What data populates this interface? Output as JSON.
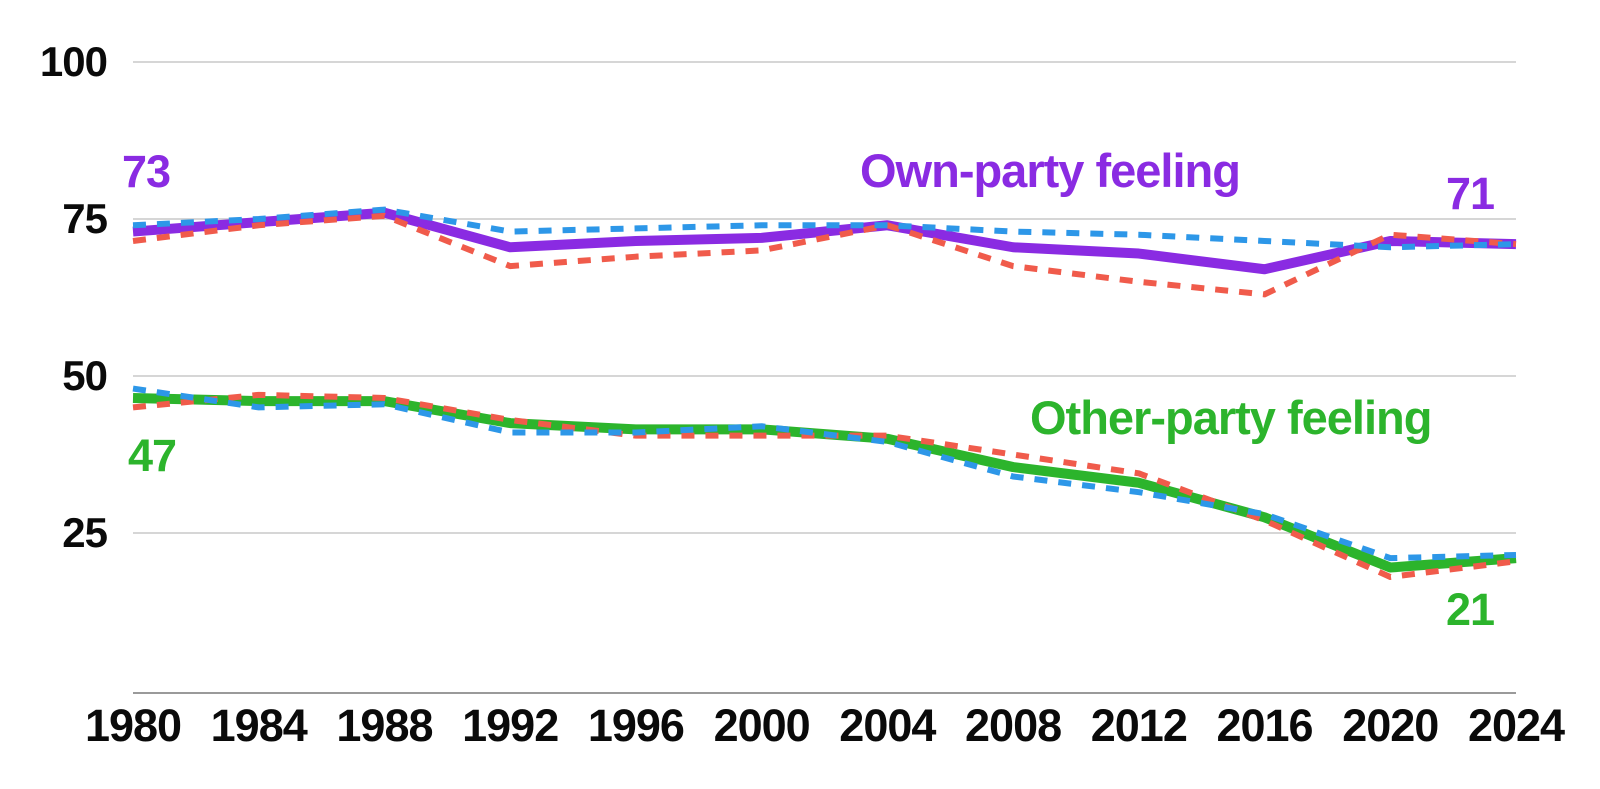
{
  "chart_data": {
    "type": "line",
    "title": "",
    "x": [
      1980,
      1984,
      1988,
      1992,
      1996,
      2000,
      2004,
      2008,
      2012,
      2016,
      2020,
      2024
    ],
    "x_tick_labels": [
      "1980",
      "1984",
      "1988",
      "1992",
      "1996",
      "2000",
      "2004",
      "2008",
      "2012",
      "2016",
      "2020",
      "2024"
    ],
    "y_axis": {
      "tick_values": [
        100,
        75,
        50,
        25
      ],
      "tick_labels": [
        "100",
        "75",
        "50",
        "25"
      ],
      "shown_range": [
        25,
        100
      ],
      "grid": true
    },
    "legend_position": "none",
    "colors": {
      "purple": "#8A2BE2",
      "green": "#2CB42C",
      "blue_dashed": "#2D97E8",
      "red_dashed": "#F05B4B",
      "gridline": "#c9c9c9",
      "axis_line": "#9a9a9a",
      "tick_text": "#0a0a0a"
    },
    "groups": [
      {
        "id": "own-party",
        "label": "Own-party feeling",
        "label_color": "#8A2BE2",
        "start_value_label": "73",
        "end_value_label": "71",
        "series": [
          {
            "id": "own-solid-average",
            "style": "solid",
            "color": "#8A2BE2",
            "values": [
              73,
              74.5,
              76,
              70.5,
              71.5,
              72,
              74,
              70.5,
              69.5,
              67,
              71.5,
              71
            ]
          },
          {
            "id": "own-dashed-red",
            "style": "dashed",
            "color": "#F05B4B",
            "values": [
              71.5,
              74,
              75.5,
              67.5,
              69,
              70,
              74,
              67.5,
              65,
              63,
              72.5,
              71
            ]
          },
          {
            "id": "own-dashed-blue",
            "style": "dashed",
            "color": "#2D97E8",
            "values": [
              74,
              75,
              76.5,
              73,
              73.5,
              74,
              74,
              73,
              72.5,
              71.5,
              70.5,
              71
            ]
          }
        ]
      },
      {
        "id": "other-party",
        "label": "Other-party feeling",
        "label_color": "#2CB42C",
        "start_value_label": "47",
        "end_value_label": "21",
        "series": [
          {
            "id": "other-solid-average",
            "style": "solid",
            "color": "#2CB42C",
            "values": [
              46.5,
              46,
              46,
              42.5,
              41.5,
              41.5,
              40,
              35.5,
              33,
              27.5,
              19.5,
              21
            ]
          },
          {
            "id": "other-dashed-red",
            "style": "dashed",
            "color": "#F05B4B",
            "values": [
              45,
              47,
              46.5,
              43,
              40.5,
              40.5,
              40.5,
              37.5,
              34.5,
              27,
              18,
              20.5
            ]
          },
          {
            "id": "other-dashed-blue",
            "style": "dashed",
            "color": "#2D97E8",
            "values": [
              48,
              45,
              45.5,
              41,
              41,
              42,
              39.5,
              34,
              31.5,
              28,
              21,
              21.5
            ]
          }
        ]
      }
    ]
  }
}
